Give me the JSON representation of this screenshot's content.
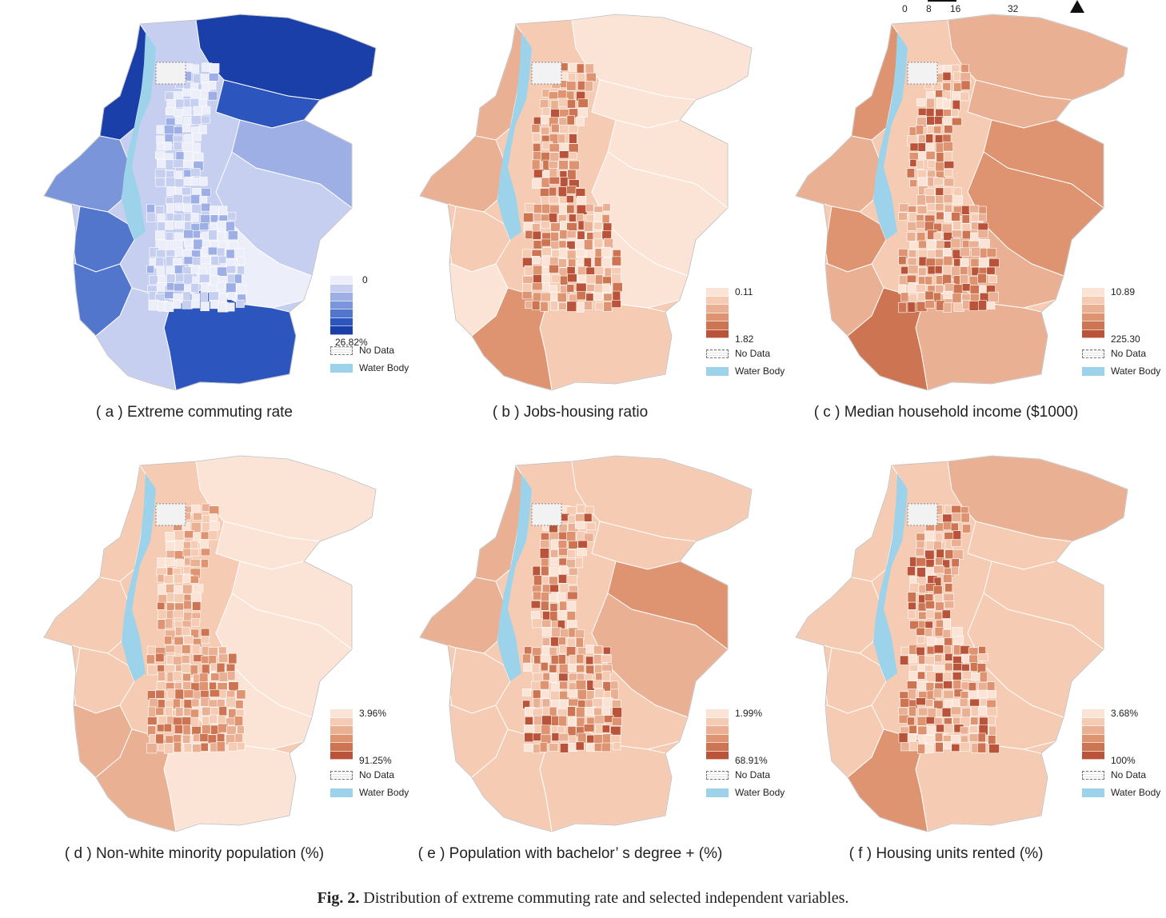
{
  "scale_bar": {
    "ticks": [
      "0",
      "8",
      "16",
      "32"
    ]
  },
  "figure_caption": {
    "label": "Fig. 2.",
    "text": "Distribution of extreme commuting rate and selected independent variables."
  },
  "legend_common": {
    "no_data": "No Data",
    "water_body": "Water Body"
  },
  "colors": {
    "water": "#9dd3ea",
    "boundary": "#ffffff"
  },
  "panels": [
    {
      "id": "a",
      "caption": "( a ) Extreme commuting rate",
      "min": "0",
      "max": "26.82%",
      "ramp": [
        "#eceef9",
        "#c6cff0",
        "#9dafe4",
        "#7b95da",
        "#5276cc",
        "#2c56bd",
        "#1a3fa8"
      ]
    },
    {
      "id": "b",
      "caption": "( b ) Jobs-housing ratio",
      "min": "0.11",
      "max": "1.82",
      "ramp": [
        "#fbe4d6",
        "#f5ccb3",
        "#eab094",
        "#de9471",
        "#cd7552",
        "#b9543a"
      ]
    },
    {
      "id": "c",
      "caption": "( c ) Median household income ($1000)",
      "min": "10.89",
      "max": "225.30",
      "ramp": [
        "#fbe4d6",
        "#f5ccb3",
        "#eab094",
        "#de9471",
        "#cd7552",
        "#b9543a"
      ]
    },
    {
      "id": "d",
      "caption": "( d ) Non-white minority population (%)",
      "min": "3.96%",
      "max": "91.25%",
      "ramp": [
        "#fbe4d6",
        "#f5ccb3",
        "#eab094",
        "#de9471",
        "#cd7552",
        "#b9543a"
      ]
    },
    {
      "id": "e",
      "caption": "( e ) Population with bachelor’ s degree + (%)",
      "min": "1.99%",
      "max": "68.91%",
      "ramp": [
        "#fbe4d6",
        "#f5ccb3",
        "#eab094",
        "#de9471",
        "#cd7552",
        "#b9543a"
      ]
    },
    {
      "id": "f",
      "caption": "( f ) Housing units rented (%)",
      "min": "3.68%",
      "max": "100%",
      "ramp": [
        "#fbe4d6",
        "#f5ccb3",
        "#eab094",
        "#de9471",
        "#cd7552",
        "#b9543a"
      ]
    }
  ]
}
